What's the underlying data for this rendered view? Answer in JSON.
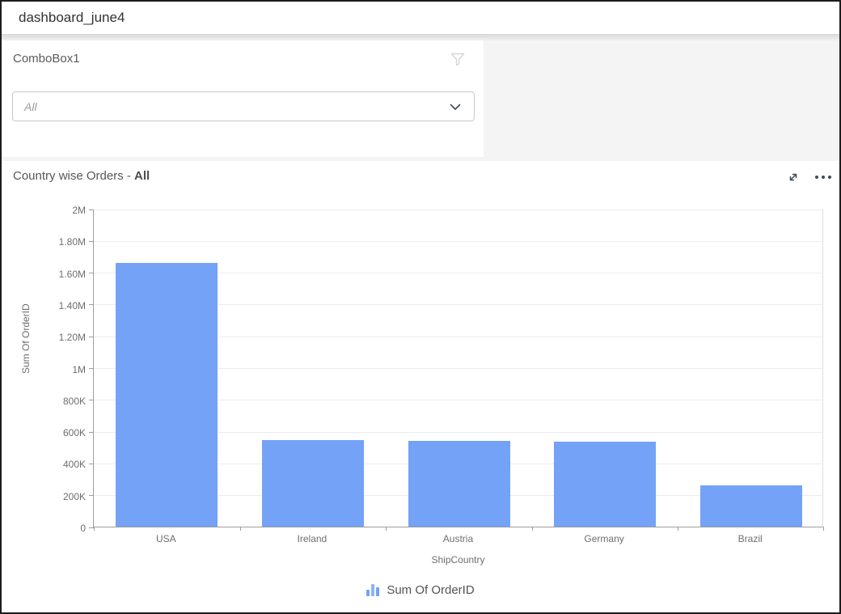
{
  "window": {
    "title": "dashboard_june4"
  },
  "combobox_widget": {
    "title": "ComboBox1",
    "value": "All",
    "filter_icon": "funnel-icon",
    "dropdown_icon": "chevron-down-icon"
  },
  "chart_widget": {
    "title_prefix": "Country wise Orders - ",
    "title_value": "All",
    "maximize_icon": "expand-icon",
    "more_icon": "ellipsis-icon"
  },
  "colors": {
    "bar": "#73a2f7",
    "icon_dark": "#3e4a57",
    "funnel_gray": "#d7d7d7",
    "grid": "#ececec",
    "axis": "#9e9e9e",
    "card_bg": "#ffffff",
    "canvas_bg": "#f4f4f4"
  },
  "chart_data": {
    "type": "bar",
    "title": "Country wise Orders - All",
    "categories": [
      "USA",
      "Ireland",
      "Austria",
      "Germany",
      "Brazil"
    ],
    "values": [
      1660000,
      545000,
      540000,
      535000,
      262000
    ],
    "xlabel": "ShipCountry",
    "ylabel": "Sum Of OrderID",
    "ylim": [
      0,
      2000000
    ],
    "yticks": [
      {
        "v": 0,
        "label": "0"
      },
      {
        "v": 200000,
        "label": "200K"
      },
      {
        "v": 400000,
        "label": "400K"
      },
      {
        "v": 600000,
        "label": "600K"
      },
      {
        "v": 800000,
        "label": "800K"
      },
      {
        "v": 1000000,
        "label": "1M"
      },
      {
        "v": 1200000,
        "label": "1.20M"
      },
      {
        "v": 1400000,
        "label": "1.40M"
      },
      {
        "v": 1600000,
        "label": "1.60M"
      },
      {
        "v": 1800000,
        "label": "1.80M"
      },
      {
        "v": 2000000,
        "label": "2M"
      }
    ],
    "grid": true,
    "legend": [
      "Sum Of OrderID"
    ],
    "legend_position": "bottom"
  }
}
